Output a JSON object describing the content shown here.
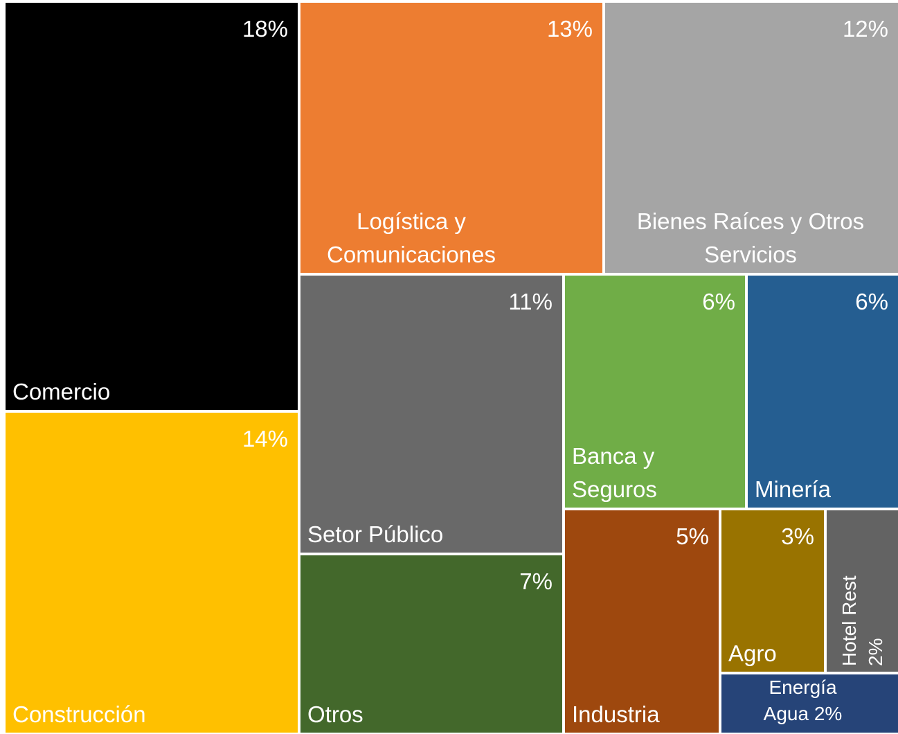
{
  "chart_data": {
    "type": "treemap",
    "categories": [
      "Comercio",
      "Construcción",
      "Logística y Comunicaciones",
      "Bienes Raíces y Otros Servicios",
      "Setor Público",
      "Otros",
      "Banca y Seguros",
      "Minería",
      "Industria",
      "Agro",
      "Hotel Rest",
      "Energía Agua"
    ],
    "values": [
      18,
      14,
      13,
      12,
      11,
      7,
      6,
      6,
      5,
      3,
      2,
      2
    ],
    "value_labels": [
      "18%",
      "14%",
      "13%",
      "12%",
      "11%",
      "7%",
      "6%",
      "6%",
      "5%",
      "3%",
      "2%",
      "2%"
    ],
    "colors": [
      "#000000",
      "#FFC000",
      "#ED7D31",
      "#A5A5A5",
      "#696969",
      "#43682B",
      "#70AD47",
      "#255E91",
      "#9E480E",
      "#997300",
      "#636363",
      "#264478"
    ]
  }
}
